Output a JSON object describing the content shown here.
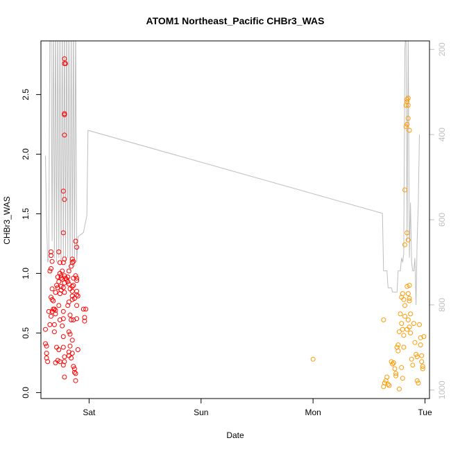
{
  "chart_data": {
    "type": "scatter",
    "title": "ATOM1 Northeast_Pacific CHBr3_WAS",
    "xlabel": "Date",
    "ylabel": "CHBr3_WAS",
    "x_axis": {
      "type": "time",
      "range_days": [
        -0.43,
        3.04
      ],
      "ticks": [
        {
          "value": 0,
          "label": "Sat"
        },
        {
          "value": 1,
          "label": "Sun"
        },
        {
          "value": 2,
          "label": "Mon"
        },
        {
          "value": 3,
          "label": "Tue"
        }
      ]
    },
    "y_axis": {
      "range": [
        -0.05,
        2.95
      ],
      "ticks": [
        0.0,
        0.5,
        1.0,
        1.5,
        2.0,
        2.5
      ],
      "tick_labels": [
        "0.0",
        "0.5",
        "1.0",
        "1.5",
        "2.0",
        "2.5"
      ]
    },
    "y2_axis": {
      "note": "secondary scale drawn in grey, increasing downward",
      "range": [
        180,
        1020
      ],
      "ticks": [
        200,
        400,
        600,
        800,
        1000
      ],
      "tick_labels": [
        "200",
        "400",
        "600",
        "800",
        "1000"
      ],
      "color": "#bfbfbf"
    },
    "grid": false,
    "legend": "none",
    "colors": {
      "series1": "#ff0000",
      "series2": "#ff9900",
      "line": "#bdbdbd"
    },
    "series": [
      {
        "color": "#ff0000",
        "points": [
          [
            -0.39,
            0.41
          ],
          [
            -0.38,
            0.39
          ],
          [
            -0.38,
            0.33
          ],
          [
            -0.38,
            0.29
          ],
          [
            -0.37,
            0.26
          ],
          [
            -0.39,
            0.53
          ],
          [
            -0.35,
            0.57
          ],
          [
            -0.34,
            0.64
          ],
          [
            -0.33,
            0.68
          ],
          [
            -0.36,
            0.68
          ],
          [
            -0.33,
            0.78
          ],
          [
            -0.34,
            0.8
          ],
          [
            -0.33,
            0.87
          ],
          [
            -0.35,
            1.02
          ],
          [
            -0.34,
            1.04
          ],
          [
            -0.34,
            1.15
          ],
          [
            -0.34,
            1.18
          ],
          [
            -0.33,
            1.1
          ],
          [
            -0.32,
            0.77
          ],
          [
            -0.32,
            0.7
          ],
          [
            -0.31,
            0.7
          ],
          [
            -0.3,
            0.69
          ],
          [
            -0.3,
            0.66
          ],
          [
            -0.31,
            0.57
          ],
          [
            -0.31,
            0.51
          ],
          [
            -0.3,
            0.25
          ],
          [
            -0.28,
            0.27
          ],
          [
            -0.29,
            0.38
          ],
          [
            -0.3,
            0.84
          ],
          [
            -0.28,
            0.88
          ],
          [
            -0.29,
            0.9
          ],
          [
            -0.28,
            0.97
          ],
          [
            -0.27,
            0.93
          ],
          [
            -0.26,
            1.0
          ],
          [
            -0.26,
            1.09
          ],
          [
            -0.27,
            1.18
          ],
          [
            -0.25,
            0.98
          ],
          [
            -0.25,
            0.96
          ],
          [
            -0.24,
            0.95
          ],
          [
            -0.25,
            0.89
          ],
          [
            -0.25,
            0.86
          ],
          [
            -0.26,
            0.83
          ],
          [
            -0.27,
            0.73
          ],
          [
            -0.26,
            0.61
          ],
          [
            -0.27,
            0.36
          ],
          [
            -0.26,
            0.26
          ],
          [
            -0.24,
            1.02
          ],
          [
            -0.23,
            1.09
          ],
          [
            -0.22,
            1.12
          ],
          [
            -0.23,
            1.34
          ],
          [
            -0.22,
            1.62
          ],
          [
            -0.23,
            1.69
          ],
          [
            -0.22,
            2.16
          ],
          [
            -0.22,
            2.33
          ],
          [
            -0.22,
            2.34
          ],
          [
            -0.22,
            2.76
          ],
          [
            -0.21,
            2.76
          ],
          [
            -0.22,
            2.8
          ],
          [
            -0.22,
            0.98
          ],
          [
            -0.21,
            0.96
          ],
          [
            -0.22,
            0.92
          ],
          [
            -0.23,
            0.88
          ],
          [
            -0.22,
            0.84
          ],
          [
            -0.23,
            0.68
          ],
          [
            -0.23,
            0.62
          ],
          [
            -0.24,
            0.56
          ],
          [
            -0.23,
            0.47
          ],
          [
            -0.23,
            0.38
          ],
          [
            -0.22,
            0.3
          ],
          [
            -0.22,
            0.26
          ],
          [
            -0.23,
            0.23
          ],
          [
            -0.22,
            0.13
          ],
          [
            -0.2,
            0.95
          ],
          [
            -0.19,
            0.97
          ],
          [
            -0.19,
            0.93
          ],
          [
            -0.18,
            1.02
          ],
          [
            -0.18,
            0.91
          ],
          [
            -0.17,
            0.87
          ],
          [
            -0.18,
            0.76
          ],
          [
            -0.19,
            0.73
          ],
          [
            -0.17,
            0.65
          ],
          [
            -0.18,
            0.51
          ],
          [
            -0.17,
            0.49
          ],
          [
            -0.17,
            0.39
          ],
          [
            -0.18,
            0.34
          ],
          [
            -0.18,
            0.31
          ],
          [
            -0.16,
            0.29
          ],
          [
            -0.16,
            0.61
          ],
          [
            -0.15,
            0.78
          ],
          [
            -0.15,
            0.81
          ],
          [
            -0.15,
            0.85
          ],
          [
            -0.15,
            0.89
          ],
          [
            -0.16,
            1.06
          ],
          [
            -0.15,
            1.09
          ],
          [
            -0.15,
            1.12
          ],
          [
            -0.14,
            1.1
          ],
          [
            -0.14,
            0.96
          ],
          [
            -0.14,
            0.9
          ],
          [
            -0.13,
            0.79
          ],
          [
            -0.14,
            0.61
          ],
          [
            -0.15,
            0.44
          ],
          [
            -0.15,
            0.33
          ],
          [
            -0.14,
            0.22
          ],
          [
            -0.13,
            0.2
          ],
          [
            -0.13,
            0.17
          ],
          [
            -0.12,
            0.16
          ],
          [
            -0.12,
            0.1
          ],
          [
            -0.12,
            1.27
          ],
          [
            -0.11,
            1.22
          ],
          [
            -0.12,
            0.98
          ],
          [
            -0.11,
            0.96
          ],
          [
            -0.11,
            0.94
          ],
          [
            -0.11,
            0.85
          ],
          [
            -0.11,
            0.82
          ],
          [
            -0.1,
            0.81
          ],
          [
            -0.11,
            0.73
          ],
          [
            -0.11,
            0.62
          ],
          [
            -0.1,
            0.36
          ],
          [
            -0.03,
            0.7
          ],
          [
            -0.04,
            0.63
          ],
          [
            -0.04,
            0.6
          ],
          [
            -0.05,
            0.7
          ]
        ]
      },
      {
        "color": "#ff9900",
        "points": [
          [
            2.0,
            0.28
          ],
          [
            2.63,
            0.61
          ],
          [
            2.63,
            0.05
          ],
          [
            2.64,
            0.08
          ],
          [
            2.65,
            0.1
          ],
          [
            2.66,
            0.13
          ],
          [
            2.67,
            0.07
          ],
          [
            2.68,
            0.06
          ],
          [
            2.7,
            0.26
          ],
          [
            2.71,
            0.24
          ],
          [
            2.72,
            0.25
          ],
          [
            2.73,
            0.2
          ],
          [
            2.74,
            0.16
          ],
          [
            2.74,
            0.14
          ],
          [
            2.75,
            0.38
          ],
          [
            2.76,
            0.35
          ],
          [
            2.77,
            0.51
          ],
          [
            2.76,
            0.4
          ],
          [
            2.77,
            0.03
          ],
          [
            2.78,
            0.66
          ],
          [
            2.79,
            0.58
          ],
          [
            2.8,
            0.53
          ],
          [
            2.81,
            0.48
          ],
          [
            2.79,
            0.8
          ],
          [
            2.8,
            0.83
          ],
          [
            2.81,
            0.78
          ],
          [
            2.82,
            0.73
          ],
          [
            2.82,
            0.64
          ],
          [
            2.81,
            0.38
          ],
          [
            2.8,
            0.12
          ],
          [
            2.79,
            0.21
          ],
          [
            2.82,
            1.24
          ],
          [
            2.82,
            1.7
          ],
          [
            2.83,
            2.23
          ],
          [
            2.83,
            2.41
          ],
          [
            2.84,
            2.46
          ],
          [
            2.84,
            2.44
          ],
          [
            2.85,
            2.47
          ],
          [
            2.85,
            2.41
          ],
          [
            2.84,
            2.25
          ],
          [
            2.85,
            2.3
          ],
          [
            2.86,
            2.2
          ],
          [
            2.84,
            1.34
          ],
          [
            2.85,
            1.28
          ],
          [
            2.84,
            0.89
          ],
          [
            2.86,
            0.9
          ],
          [
            2.85,
            0.83
          ],
          [
            2.86,
            0.79
          ],
          [
            2.86,
            0.77
          ],
          [
            2.87,
            0.66
          ],
          [
            2.85,
            0.61
          ],
          [
            2.84,
            0.53
          ],
          [
            2.86,
            0.55
          ],
          [
            2.87,
            0.5
          ],
          [
            2.88,
            0.28
          ],
          [
            2.89,
            0.23
          ],
          [
            2.9,
            0.58
          ],
          [
            2.91,
            0.42
          ],
          [
            2.92,
            0.32
          ],
          [
            2.93,
            0.3
          ],
          [
            2.93,
            0.1
          ],
          [
            2.94,
            0.08
          ],
          [
            2.95,
            0.57
          ],
          [
            2.96,
            0.46
          ],
          [
            2.96,
            0.4
          ],
          [
            2.97,
            0.31
          ],
          [
            2.97,
            0.26
          ],
          [
            2.98,
            0.22
          ],
          [
            2.98,
            0.2
          ],
          [
            2.99,
            0.47
          ]
        ]
      }
    ],
    "secondary_line": {
      "color": "#bdbdbd",
      "axis": "y2",
      "segments": [
        [
          [
            -0.39,
            450
          ],
          [
            -0.38,
            600
          ],
          [
            -0.37,
            700
          ],
          [
            -0.36,
            690
          ],
          [
            -0.35,
            120
          ],
          [
            -0.34,
            120
          ],
          [
            -0.33,
            650
          ],
          [
            -0.32,
            120
          ],
          [
            -0.31,
            690
          ],
          [
            -0.3,
            120
          ],
          [
            -0.29,
            700
          ],
          [
            -0.28,
            120
          ],
          [
            -0.27,
            690
          ],
          [
            -0.26,
            120
          ],
          [
            -0.25,
            700
          ],
          [
            -0.24,
            120
          ],
          [
            -0.23,
            690
          ],
          [
            -0.22,
            120
          ],
          [
            -0.21,
            700
          ],
          [
            -0.2,
            120
          ],
          [
            -0.19,
            690
          ],
          [
            -0.18,
            120
          ],
          [
            -0.17,
            720
          ],
          [
            -0.16,
            120
          ],
          [
            -0.15,
            700
          ],
          [
            -0.14,
            120
          ],
          [
            -0.13,
            710
          ],
          [
            -0.12,
            120
          ],
          [
            -0.11,
            700
          ],
          [
            -0.1,
            640
          ],
          [
            -0.05,
            630
          ],
          [
            -0.02,
            590
          ],
          [
            -0.01,
            390
          ],
          [
            2.62,
            585
          ],
          [
            2.63,
            720
          ],
          [
            2.66,
            720
          ],
          [
            2.67,
            760
          ],
          [
            2.7,
            760
          ],
          [
            2.71,
            770
          ],
          [
            2.75,
            770
          ],
          [
            2.76,
            720
          ],
          [
            2.78,
            720
          ],
          [
            2.79,
            690
          ],
          [
            2.8,
            700
          ],
          [
            2.81,
            680
          ],
          [
            2.82,
            200
          ],
          [
            2.83,
            150
          ],
          [
            2.84,
            650
          ],
          [
            2.85,
            150
          ],
          [
            2.86,
            690
          ],
          [
            2.87,
            560
          ],
          [
            2.88,
            700
          ],
          [
            2.89,
            720
          ],
          [
            2.9,
            720
          ],
          [
            2.91,
            690
          ],
          [
            2.92,
            800
          ],
          [
            2.93,
            650
          ],
          [
            2.94,
            560
          ],
          [
            2.95,
            400
          ]
        ]
      ]
    }
  }
}
